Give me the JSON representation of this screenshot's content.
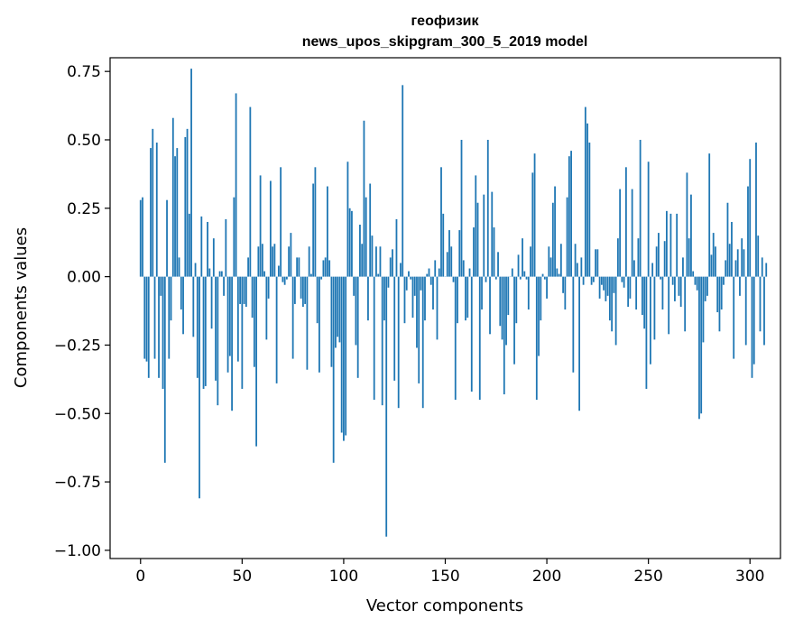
{
  "chart_data": {
    "type": "bar",
    "title": "геофизик",
    "subtitle": "news_upos_skipgram_300_5_2019 model",
    "xlabel": "Vector components",
    "ylabel": "Components values",
    "xlim": [
      -15,
      315
    ],
    "ylim": [
      -1.03,
      0.8
    ],
    "xticks": [
      0,
      50,
      100,
      150,
      200,
      250,
      300
    ],
    "xtick_labels": [
      "0",
      "50",
      "100",
      "150",
      "200",
      "250",
      "300"
    ],
    "yticks": [
      0.75,
      0.5,
      0.25,
      0.0,
      -0.25,
      -0.5,
      -0.75,
      -1.0
    ],
    "ytick_labels": [
      "0.75",
      "0.50",
      "0.25",
      "0.00",
      "−0.25",
      "−0.50",
      "−0.75",
      "−1.00"
    ],
    "bar_color": "#1f77b4",
    "grid": false,
    "series": [
      {
        "values": [
          0.28,
          0.29,
          -0.3,
          -0.31,
          -0.37,
          0.47,
          0.54,
          -0.3,
          0.49,
          -0.37,
          -0.07,
          -0.41,
          -0.68,
          0.28,
          -0.3,
          -0.16,
          0.58,
          0.44,
          0.47,
          0.07,
          -0.12,
          -0.21,
          0.51,
          0.54,
          0.23,
          0.76,
          -0.22,
          0.05,
          -0.37,
          -0.81,
          0.22,
          -0.41,
          -0.4,
          0.2,
          0.03,
          -0.19,
          0.14,
          -0.38,
          -0.47,
          0.02,
          0.02,
          -0.07,
          0.21,
          -0.35,
          -0.29,
          -0.49,
          0.29,
          0.67,
          -0.31,
          -0.1,
          -0.41,
          -0.1,
          -0.11,
          0.07,
          0.62,
          -0.15,
          -0.33,
          -0.62,
          0.11,
          0.37,
          0.12,
          0.02,
          -0.23,
          -0.08,
          0.35,
          0.11,
          0.12,
          -0.39,
          0.04,
          0.4,
          -0.02,
          -0.03,
          -0.01,
          0.11,
          0.16,
          -0.3,
          -0.1,
          0.07,
          0.07,
          -0.08,
          -0.11,
          -0.1,
          -0.34,
          0.11,
          0.01,
          0.34,
          0.4,
          -0.17,
          -0.35,
          -0.01,
          0.06,
          0.07,
          0.33,
          0.06,
          -0.33,
          -0.68,
          -0.26,
          -0.22,
          -0.24,
          -0.57,
          -0.6,
          -0.58,
          0.42,
          0.25,
          0.24,
          -0.07,
          -0.25,
          -0.37,
          0.19,
          0.12,
          0.57,
          0.29,
          -0.16,
          0.34,
          0.15,
          -0.45,
          0.11,
          0.01,
          0.11,
          -0.47,
          -0.16,
          -0.95,
          -0.04,
          0.07,
          0.1,
          -0.38,
          0.21,
          -0.48,
          0.05,
          0.7,
          -0.17,
          -0.05,
          0.02,
          -0.01,
          -0.15,
          -0.07,
          -0.26,
          -0.39,
          -0.05,
          -0.48,
          -0.16,
          0.01,
          0.03,
          -0.03,
          -0.12,
          0.06,
          -0.23,
          0.03,
          0.4,
          0.23,
          0.0,
          0.09,
          0.17,
          0.11,
          -0.02,
          -0.45,
          -0.17,
          0.17,
          0.5,
          0.06,
          -0.16,
          -0.15,
          0.03,
          -0.42,
          0.18,
          0.37,
          0.27,
          -0.45,
          -0.12,
          0.3,
          -0.02,
          0.5,
          -0.21,
          0.31,
          0.18,
          -0.01,
          0.09,
          -0.18,
          -0.23,
          -0.43,
          -0.25,
          -0.14,
          0.0,
          0.03,
          -0.32,
          -0.17,
          0.08,
          -0.01,
          0.14,
          0.02,
          -0.01,
          -0.12,
          0.11,
          0.38,
          0.45,
          -0.45,
          -0.29,
          -0.16,
          0.01,
          -0.01,
          -0.08,
          0.11,
          0.07,
          0.27,
          0.33,
          0.03,
          0.01,
          0.12,
          -0.06,
          -0.12,
          0.29,
          0.44,
          0.46,
          -0.35,
          0.12,
          0.05,
          -0.49,
          0.07,
          -0.03,
          0.62,
          0.56,
          0.49,
          -0.03,
          -0.02,
          0.1,
          0.1,
          -0.08,
          -0.03,
          -0.05,
          -0.09,
          -0.07,
          -0.16,
          -0.2,
          -0.06,
          -0.25,
          0.14,
          0.32,
          -0.02,
          -0.04,
          0.4,
          -0.11,
          -0.08,
          0.32,
          0.06,
          -0.12,
          0.14,
          0.5,
          -0.14,
          -0.19,
          -0.41,
          0.42,
          -0.32,
          0.05,
          -0.23,
          0.11,
          0.16,
          -0.01,
          -0.12,
          0.13,
          0.24,
          -0.21,
          0.23,
          -0.03,
          -0.09,
          0.23,
          -0.07,
          -0.11,
          0.07,
          -0.2,
          0.38,
          0.14,
          0.3,
          0.02,
          -0.03,
          -0.05,
          -0.52,
          -0.5,
          -0.24,
          -0.09,
          -0.07,
          0.45,
          0.08,
          0.16,
          0.11,
          -0.13,
          -0.2,
          -0.12,
          -0.03,
          0.06,
          0.27,
          0.12,
          0.2,
          -0.3,
          0.06,
          0.1,
          -0.07,
          0.14,
          0.1,
          -0.25,
          0.33,
          0.43,
          -0.37,
          -0.32,
          0.49,
          0.15,
          -0.2,
          0.07,
          -0.25,
          0.05
        ]
      }
    ]
  }
}
